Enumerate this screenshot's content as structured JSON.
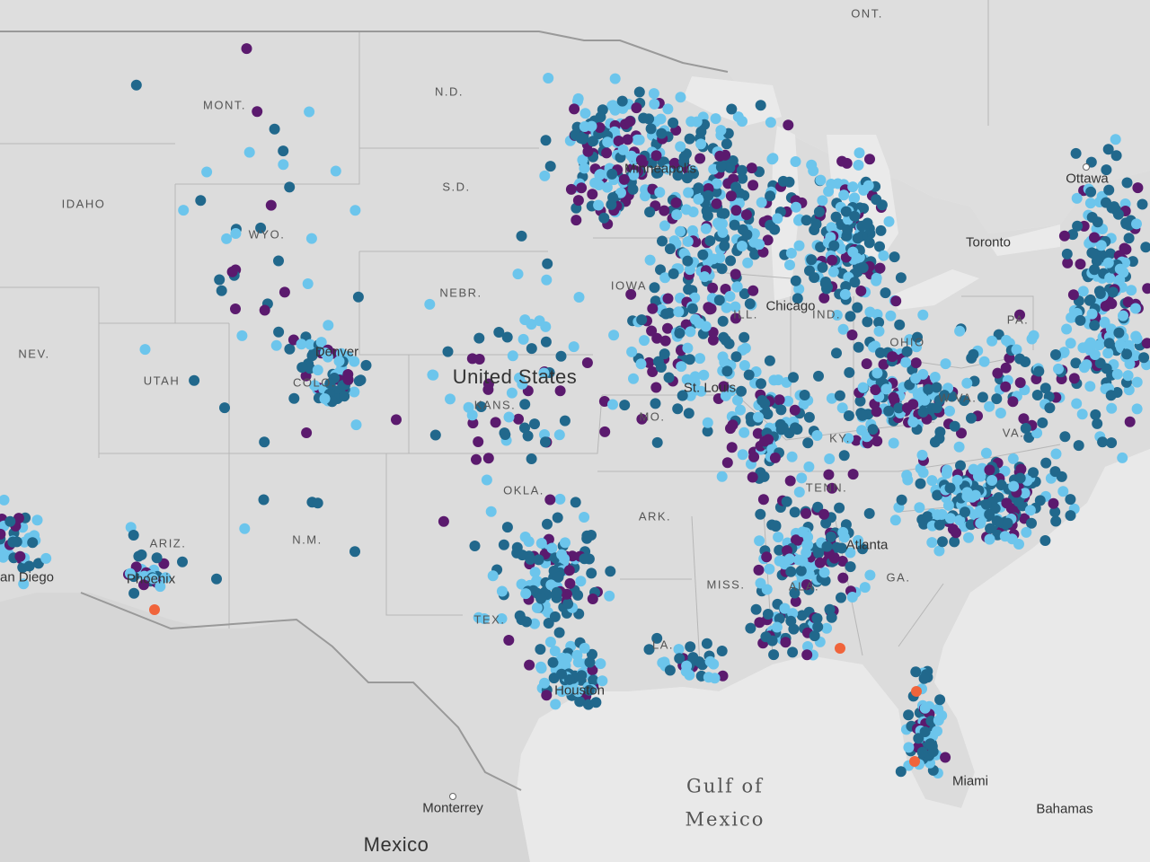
{
  "map": {
    "colors": {
      "light": "#6cc5ec",
      "dark": "#21688c",
      "purple": "#5b1a6e",
      "orange": "#f0643b",
      "land": "#d9d9d9",
      "water": "#eaeaea"
    },
    "labels": {
      "ont": "ONT.",
      "mont": "MONT.",
      "nd": "N.D.",
      "idaho": "IDAHO",
      "sd": "S.D.",
      "wyo": "WYO.",
      "nebr": "NEBR.",
      "iowa": "IOWA",
      "nev": "NEV.",
      "utah": "UTAH",
      "colo": "COLO.",
      "united_states": "United States",
      "kans": "KANS.",
      "mo": "MO.",
      "ill": "ILL.",
      "ind": "IND.",
      "ohio": "OHIO",
      "pa": "PA.",
      "wva": "W.VA.",
      "ky": "KY.",
      "va": "VA.",
      "tenn": "TENN.",
      "okla": "OKLA.",
      "ark": "ARK.",
      "ariz": "ARIZ.",
      "nm": "N.M.",
      "miss": "MISS.",
      "ala": "ALA.",
      "ga": "GA.",
      "tex": "TEX.",
      "la": "LA.",
      "ottawa": "Ottawa",
      "toronto": "Toronto",
      "chicago": "Chicago",
      "st_louis": "St. Louis",
      "denver": "Denver",
      "phoenix": "Phoenix",
      "san_diego": "San Diego",
      "atlanta": "Atlanta",
      "houston": "Houston",
      "miami": "Miami",
      "monterrey": "Monterrey",
      "mexico": "Mexico",
      "bahamas": "Bahamas",
      "gulf_line1": "Gulf of",
      "gulf_line2": "Mexico",
      "minneapolis": "Minneapolis"
    }
  }
}
